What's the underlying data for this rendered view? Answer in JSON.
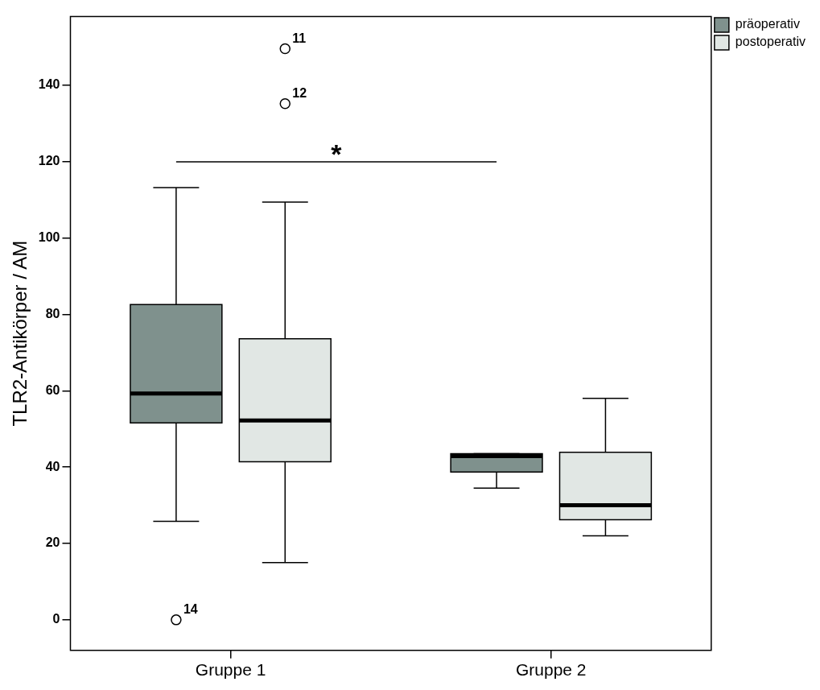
{
  "chart_data": {
    "type": "box",
    "ylabel": "TLR2-Antikörper / AM",
    "categories": [
      "Gruppe 1",
      "Gruppe 2"
    ],
    "series": [
      {
        "name": "präoperativ",
        "color": "#7f918d",
        "boxes": [
          {
            "low": 25.8,
            "q1": 51.6,
            "median": 59.3,
            "q3": 82.6,
            "high": 113.2,
            "outliers": [
              0
            ]
          },
          {
            "low": 34.5,
            "q1": 38.7,
            "median": 42.9,
            "q3": 43.5,
            "high": 43.5
          }
        ]
      },
      {
        "name": "postoperativ",
        "color": "#e1e7e4",
        "boxes": [
          {
            "low": 15,
            "q1": 41.4,
            "median": 52.2,
            "q3": 73.6,
            "high": 109.4,
            "outliers": [
              149.6,
              135.2
            ]
          },
          {
            "low": 22,
            "q1": 26.2,
            "median": 30,
            "q3": 43.9,
            "high": 58
          }
        ]
      }
    ],
    "ylim": [
      -8,
      158
    ],
    "yticks": [
      0,
      20,
      40,
      60,
      80,
      100,
      120,
      140
    ],
    "grid": false,
    "legend": "top right",
    "annotations": [
      "14",
      "11",
      "12",
      "*"
    ]
  }
}
